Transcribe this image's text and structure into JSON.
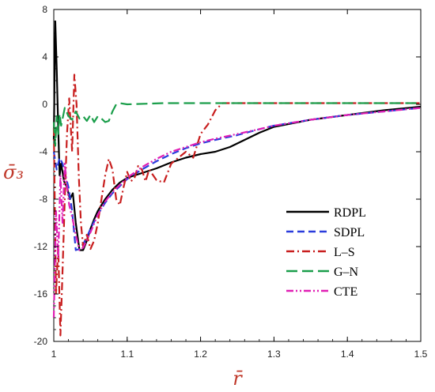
{
  "chart_data": {
    "type": "line",
    "xlabel": "r̄",
    "ylabel": "σ̄₃",
    "xlim": [
      1.0,
      1.5
    ],
    "ylim": [
      -20,
      8
    ],
    "xticks": [
      1,
      1.1,
      1.2,
      1.3,
      1.4,
      1.5
    ],
    "xtick_labels": [
      "1",
      "1.1",
      "1.2",
      "1.3",
      "1.4",
      "1.5"
    ],
    "yticks": [
      8,
      4,
      0,
      -4,
      -8,
      -12,
      -16,
      -20
    ],
    "ytick_labels": [
      "8",
      "4",
      "0",
      "-4",
      "-8",
      "-12",
      "-16",
      "-20"
    ],
    "grid": false,
    "legend_position": "bottom-right",
    "axis_label_color": "#c0392b",
    "series": [
      {
        "name": "RDPL",
        "color": "#000000",
        "dash": "solid",
        "x": [
          1.0,
          1.002,
          1.004,
          1.006,
          1.008,
          1.01,
          1.014,
          1.018,
          1.022,
          1.026,
          1.03,
          1.035,
          1.04,
          1.045,
          1.05,
          1.055,
          1.06,
          1.065,
          1.07,
          1.08,
          1.09,
          1.1,
          1.12,
          1.14,
          1.16,
          1.18,
          1.2,
          1.22,
          1.24,
          1.26,
          1.28,
          1.3,
          1.35,
          1.4,
          1.45,
          1.5
        ],
        "y": [
          -3,
          7,
          3,
          -2,
          -6,
          -5,
          -6.5,
          -7,
          -8,
          -7.5,
          -10,
          -12.3,
          -12.3,
          -11.5,
          -10.5,
          -9.7,
          -9,
          -8.5,
          -8,
          -7.2,
          -6.6,
          -6.2,
          -5.8,
          -5.4,
          -4.9,
          -4.5,
          -4.2,
          -4.0,
          -3.6,
          -3.0,
          -2.4,
          -1.9,
          -1.3,
          -0.9,
          -0.5,
          -0.2
        ]
      },
      {
        "name": "SDPL",
        "color": "#2a3cdc",
        "dash": "dash",
        "x": [
          1.0,
          1.004,
          1.008,
          1.012,
          1.016,
          1.02,
          1.025,
          1.03,
          1.035,
          1.04,
          1.045,
          1.05,
          1.06,
          1.07,
          1.08,
          1.1,
          1.12,
          1.14,
          1.16,
          1.18,
          1.2,
          1.22,
          1.25,
          1.28,
          1.3,
          1.35,
          1.4,
          1.45,
          1.5
        ],
        "y": [
          -4,
          -5.5,
          -4.5,
          -5,
          -6,
          -7,
          -9,
          -12.3,
          -12.2,
          -11.8,
          -11.2,
          -10.5,
          -9.3,
          -8.3,
          -7.5,
          -6.3,
          -5.5,
          -4.8,
          -4.2,
          -3.7,
          -3.3,
          -3.0,
          -2.6,
          -2.1,
          -1.8,
          -1.3,
          -0.9,
          -0.6,
          -0.3
        ]
      },
      {
        "name": "L–S",
        "color": "#c81e1e",
        "dash": "dashdot",
        "x": [
          1.0,
          1.003,
          1.006,
          1.009,
          1.012,
          1.015,
          1.018,
          1.021,
          1.025,
          1.028,
          1.031,
          1.034,
          1.037,
          1.04,
          1.045,
          1.05,
          1.055,
          1.06,
          1.065,
          1.07,
          1.075,
          1.08,
          1.085,
          1.09,
          1.095,
          1.1,
          1.105,
          1.11,
          1.115,
          1.12,
          1.125,
          1.13,
          1.14,
          1.15,
          1.16,
          1.17,
          1.18,
          1.19,
          1.2,
          1.21,
          1.22,
          1.23,
          1.24,
          1.3,
          1.4,
          1.5
        ],
        "y": [
          -2,
          -16,
          -12,
          -19.5,
          -14,
          -8,
          -2.5,
          0.5,
          -4,
          2.5,
          0,
          -6,
          -10,
          -12,
          -11,
          -12.2,
          -11.5,
          -10,
          -8,
          -6,
          -4.6,
          -5.5,
          -8,
          -8.5,
          -7,
          -5.7,
          -6.5,
          -6.2,
          -5.2,
          -5.5,
          -6.5,
          -5.5,
          -6.4,
          -6.6,
          -5,
          -4.5,
          -4,
          -4.5,
          -2.5,
          -1.7,
          -0.5,
          0.1,
          0.1,
          0.1,
          0.1,
          0.1
        ]
      },
      {
        "name": "G–N",
        "color": "#1a9e4a",
        "dash": "longdash",
        "x": [
          1.0,
          1.002,
          1.004,
          1.006,
          1.008,
          1.01,
          1.015,
          1.02,
          1.025,
          1.03,
          1.035,
          1.04,
          1.045,
          1.05,
          1.055,
          1.06,
          1.065,
          1.07,
          1.075,
          1.08,
          1.085,
          1.09,
          1.1,
          1.15,
          1.2,
          1.3,
          1.4,
          1.5
        ],
        "y": [
          -1.5,
          -3.5,
          -1,
          -2.5,
          -0.8,
          -1.8,
          -0.3,
          -1.0,
          -1.3,
          -0.6,
          -1.2,
          -1.0,
          -1.4,
          -0.9,
          -1.5,
          -1.0,
          -1.2,
          -1.5,
          -1.4,
          -0.6,
          0.0,
          0.1,
          0.0,
          0.1,
          0.1,
          0.1,
          0.1,
          0.1
        ]
      },
      {
        "name": "CTE",
        "color": "#e01fb4",
        "dash": "dashdotdot",
        "x": [
          1.0,
          1.003,
          1.006,
          1.009,
          1.012,
          1.015,
          1.018,
          1.021,
          1.025,
          1.03,
          1.035,
          1.04,
          1.05,
          1.06,
          1.07,
          1.08,
          1.1,
          1.12,
          1.14,
          1.16,
          1.18,
          1.2,
          1.22,
          1.25,
          1.28,
          1.3,
          1.35,
          1.4,
          1.45,
          1.5
        ],
        "y": [
          -18,
          -9,
          -13,
          -6,
          -10,
          -5,
          -7,
          -8.5,
          -9.5,
          -11,
          -12.3,
          -12.1,
          -10.8,
          -9.3,
          -8.2,
          -7.4,
          -6.2,
          -5.3,
          -4.6,
          -4.0,
          -3.6,
          -3.2,
          -2.9,
          -2.5,
          -2.1,
          -1.8,
          -1.3,
          -0.9,
          -0.6,
          -0.3
        ]
      }
    ]
  }
}
